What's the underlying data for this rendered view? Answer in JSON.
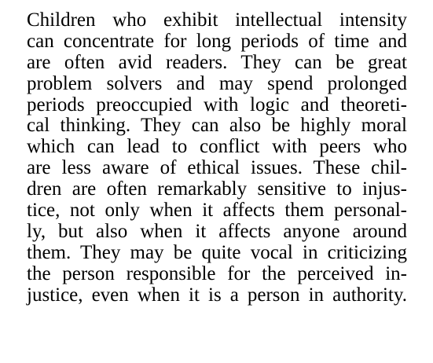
{
  "document": {
    "lines": [
      "Children who exhibit intellectual intensity",
      "can concentrate for long periods of time and",
      "are often avid readers.  They can be great",
      "problem solvers and may spend prolonged",
      "periods preoccupied with logic and theoreti-",
      "cal thinking.  They can also be highly moral",
      "which can lead to conflict with peers who",
      "are less aware of ethical issues.  These chil-",
      "dren are often remarkably sensitive to injus-",
      "tice, not only when it affects them personal-",
      "ly, but also when it affects anyone around",
      "them.  They may be quite vocal in criticizing",
      "the person responsible for the perceived in-",
      "justice, even when it is a person in authority."
    ]
  }
}
